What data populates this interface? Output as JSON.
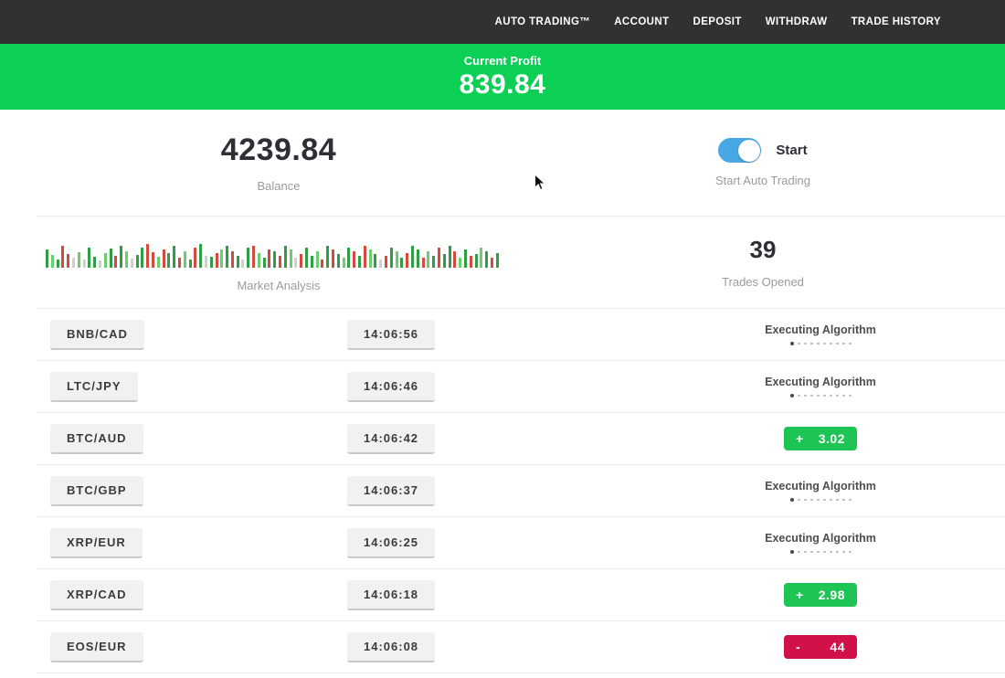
{
  "nav": {
    "items": [
      {
        "id": "auto-trading",
        "label": "AUTO TRADING™"
      },
      {
        "id": "account",
        "label": "ACCOUNT"
      },
      {
        "id": "deposit",
        "label": "DEPOSIT"
      },
      {
        "id": "withdraw",
        "label": "WITHDRAW"
      },
      {
        "id": "trade-history",
        "label": "TRADE HISTORY"
      }
    ]
  },
  "banner": {
    "label": "Current Profit",
    "value": "839.84",
    "bg_color": "#0ccf56"
  },
  "stats": {
    "balance": {
      "value": "4239.84",
      "label": "Balance"
    },
    "auto_trading": {
      "toggle_label": "Start",
      "label": "Start Auto Trading",
      "toggle_on": true,
      "toggle_color": "#47a8e5"
    },
    "market_analysis": {
      "label": "Market Analysis",
      "bar_colors": {
        "g": "#2f9e44",
        "e": "#69cf6e",
        "r": "#d44a3e",
        "p": "#e58b82",
        "y": "#cfcfcf"
      },
      "bars": [
        "g20",
        "e14",
        "g9",
        "r24",
        "r15",
        "y11",
        "e17",
        "y9",
        "g22",
        "g12",
        "y8",
        "e16",
        "g21",
        "r13",
        "g24",
        "e18",
        "y10",
        "g14",
        "g22",
        "r26",
        "r17",
        "e12",
        "r20",
        "g16",
        "g24",
        "r11",
        "e18",
        "g9",
        "r22",
        "g26",
        "y13",
        "g12",
        "r16",
        "e20",
        "g24",
        "r18",
        "g13",
        "y9",
        "g22",
        "r24",
        "e16",
        "g11",
        "r20",
        "g18",
        "r13",
        "g24",
        "e20",
        "y11",
        "r15",
        "g22",
        "g13",
        "e18",
        "r9",
        "g24",
        "r20",
        "g15",
        "e11",
        "g22",
        "r18",
        "g13",
        "r24",
        "e20",
        "g15",
        "y9",
        "r13",
        "g22",
        "e18",
        "g11",
        "r16",
        "g24",
        "g20",
        "r11",
        "e18",
        "g13",
        "r22",
        "g15",
        "g24",
        "r18",
        "e11",
        "g20",
        "r13",
        "g15",
        "e22",
        "g18",
        "r11",
        "g16"
      ]
    },
    "trades_opened": {
      "value": "39",
      "label": "Trades Opened"
    }
  },
  "status_meta": {
    "executing_dots_total": 10,
    "executing_dots_active": 1
  },
  "trades": [
    {
      "pair": "BNB/CAD",
      "time": "14:06:56",
      "status": "executing",
      "status_label": "Executing Algorithm"
    },
    {
      "pair": "LTC/JPY",
      "time": "14:06:46",
      "status": "executing",
      "status_label": "Executing Algorithm"
    },
    {
      "pair": "BTC/AUD",
      "time": "14:06:42",
      "status": "profit",
      "result_sign": "+",
      "result_value": "3.02"
    },
    {
      "pair": "BTC/GBP",
      "time": "14:06:37",
      "status": "executing",
      "status_label": "Executing Algorithm"
    },
    {
      "pair": "XRP/EUR",
      "time": "14:06:25",
      "status": "executing",
      "status_label": "Executing Algorithm"
    },
    {
      "pair": "XRP/CAD",
      "time": "14:06:18",
      "status": "profit",
      "result_sign": "+",
      "result_value": "2.98"
    },
    {
      "pair": "EOS/EUR",
      "time": "14:06:08",
      "status": "loss",
      "result_sign": "-",
      "result_value": "44"
    }
  ],
  "colors": {
    "navbar": "#323030",
    "badge_green": "#1ec454",
    "badge_red": "#d11148",
    "divider": "#ececec"
  }
}
